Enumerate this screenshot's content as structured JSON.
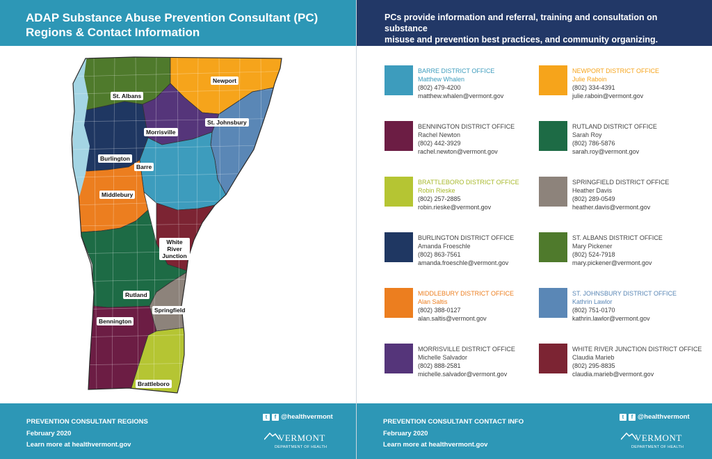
{
  "left": {
    "title_line1": "ADAP Substance Abuse Prevention Consultant (PC)",
    "title_line2": "Regions & Contact Information",
    "regions": [
      {
        "name": "St. Albans",
        "color": "#4f7a2c"
      },
      {
        "name": "Newport",
        "color": "#f6a41b"
      },
      {
        "name": "Morrisville",
        "color": "#55357a"
      },
      {
        "name": "St. Johnsbury",
        "color": "#5a87b6"
      },
      {
        "name": "Burlington",
        "color": "#1f3762"
      },
      {
        "name": "Barre",
        "color": "#3d9cbd"
      },
      {
        "name": "Middlebury",
        "color": "#ec7e1f"
      },
      {
        "name": "White River Junction",
        "color": "#7c2433"
      },
      {
        "name": "Rutland",
        "color": "#1d6b45"
      },
      {
        "name": "Springfield",
        "color": "#8d837b"
      },
      {
        "name": "Bennington",
        "color": "#6c1d44"
      },
      {
        "name": "Brattleboro",
        "color": "#b5c533"
      }
    ],
    "lake_color": "#a4d5e4",
    "footer": {
      "line1": "PREVENTION CONSULTANT REGIONS",
      "line2": "February 2020",
      "line3": "Learn more at healthvermont.gov",
      "social": "@healthvermont",
      "logo_name": "VERMONT",
      "logo_sub": "DEPARTMENT OF HEALTH"
    }
  },
  "right": {
    "intro_line1": "PCs provide information and referral, training and consultation on substance",
    "intro_line2": "misuse and prevention best practices, and community organizing.",
    "contacts": [
      {
        "office": "BARRE DISTRICT OFFICE",
        "name": "Matthew Whalen",
        "phone": "(802) 479-4200",
        "email": "matthew.whalen@vermont.gov",
        "color": "#3d9cbd",
        "head_color": "#3d9cbd"
      },
      {
        "office": "NEWPORT DISTRICT OFFICE",
        "name": "Julie Raboin",
        "phone": "(802) 334-4391",
        "email": "julie.raboin@vermont.gov",
        "color": "#f6a41b",
        "head_color": "#f6a41b"
      },
      {
        "office": "BENNINGTON DISTRICT OFFICE",
        "name": "Rachel Newton",
        "phone": "(802) 442-3929",
        "email": "rachel.newton@vermont.gov",
        "color": "#6c1d44",
        "head_color": "#444444"
      },
      {
        "office": "RUTLAND DISTRICT OFFICE",
        "name": "Sarah Roy",
        "phone": "(802) 786-5876",
        "email": "sarah.roy@vermont.gov",
        "color": "#1d6b45",
        "head_color": "#444444"
      },
      {
        "office": "BRATTLEBORO DISTRICT OFFICE",
        "name": "Robin Rieske",
        "phone": "(802) 257-2885",
        "email": "robin.rieske@vermont.gov",
        "color": "#b5c533",
        "head_color": "#a7b82a"
      },
      {
        "office": "SPRINGFIELD DISTRICT OFFICE",
        "name": "Heather Davis",
        "phone": "(802) 289-0549",
        "email": "heather.davis@vermont.gov",
        "color": "#8d837b",
        "head_color": "#444444"
      },
      {
        "office": "BURLINGTON DISTRICT OFFICE",
        "name": "Amanda Froeschle",
        "phone": "(802) 863-7561",
        "email": "amanda.froeschle@vermont.gov",
        "color": "#1f3762",
        "head_color": "#444444"
      },
      {
        "office": "ST. ALBANS DISTRICT OFFICE",
        "name": "Mary Pickener",
        "phone": "(802) 524-7918",
        "email": "mary.pickener@vermont.gov",
        "color": "#4f7a2c",
        "head_color": "#444444"
      },
      {
        "office": "MIDDLEBURY DISTRICT OFFICE",
        "name": "Alan Saltis",
        "phone": "(802) 388-0127",
        "email": "alan.saltis@vermont.gov",
        "color": "#ec7e1f",
        "head_color": "#ec7e1f"
      },
      {
        "office": "ST. JOHNSBURY DISTRICT OFFICE",
        "name": "Kathrin Lawlor",
        "phone": "(802) 751-0170",
        "email": "kathrin.lawlor@vermont.gov",
        "color": "#5a87b6",
        "head_color": "#5a87b6"
      },
      {
        "office": "MORRISVILLE DISTRICT OFFICE",
        "name": "Michelle Salvador",
        "phone": "(802) 888-2581",
        "email": "michelle.salvador@vermont.gov",
        "color": "#55357a",
        "head_color": "#444444"
      },
      {
        "office": "WHITE RIVER JUNCTION DISTRICT OFFICE",
        "name": "Claudia Marieb",
        "phone": "(802) 295-8835",
        "email": "claudia.marieb@vermont.gov",
        "color": "#7c2433",
        "head_color": "#444444"
      }
    ],
    "footer": {
      "line1": "PREVENTION CONSULTANT CONTACT INFO",
      "line2": "February 2020",
      "line3": "Learn more at healthvermont.gov",
      "social": "@healthvermont",
      "logo_name": "VERMONT",
      "logo_sub": "DEPARTMENT OF HEALTH"
    }
  }
}
